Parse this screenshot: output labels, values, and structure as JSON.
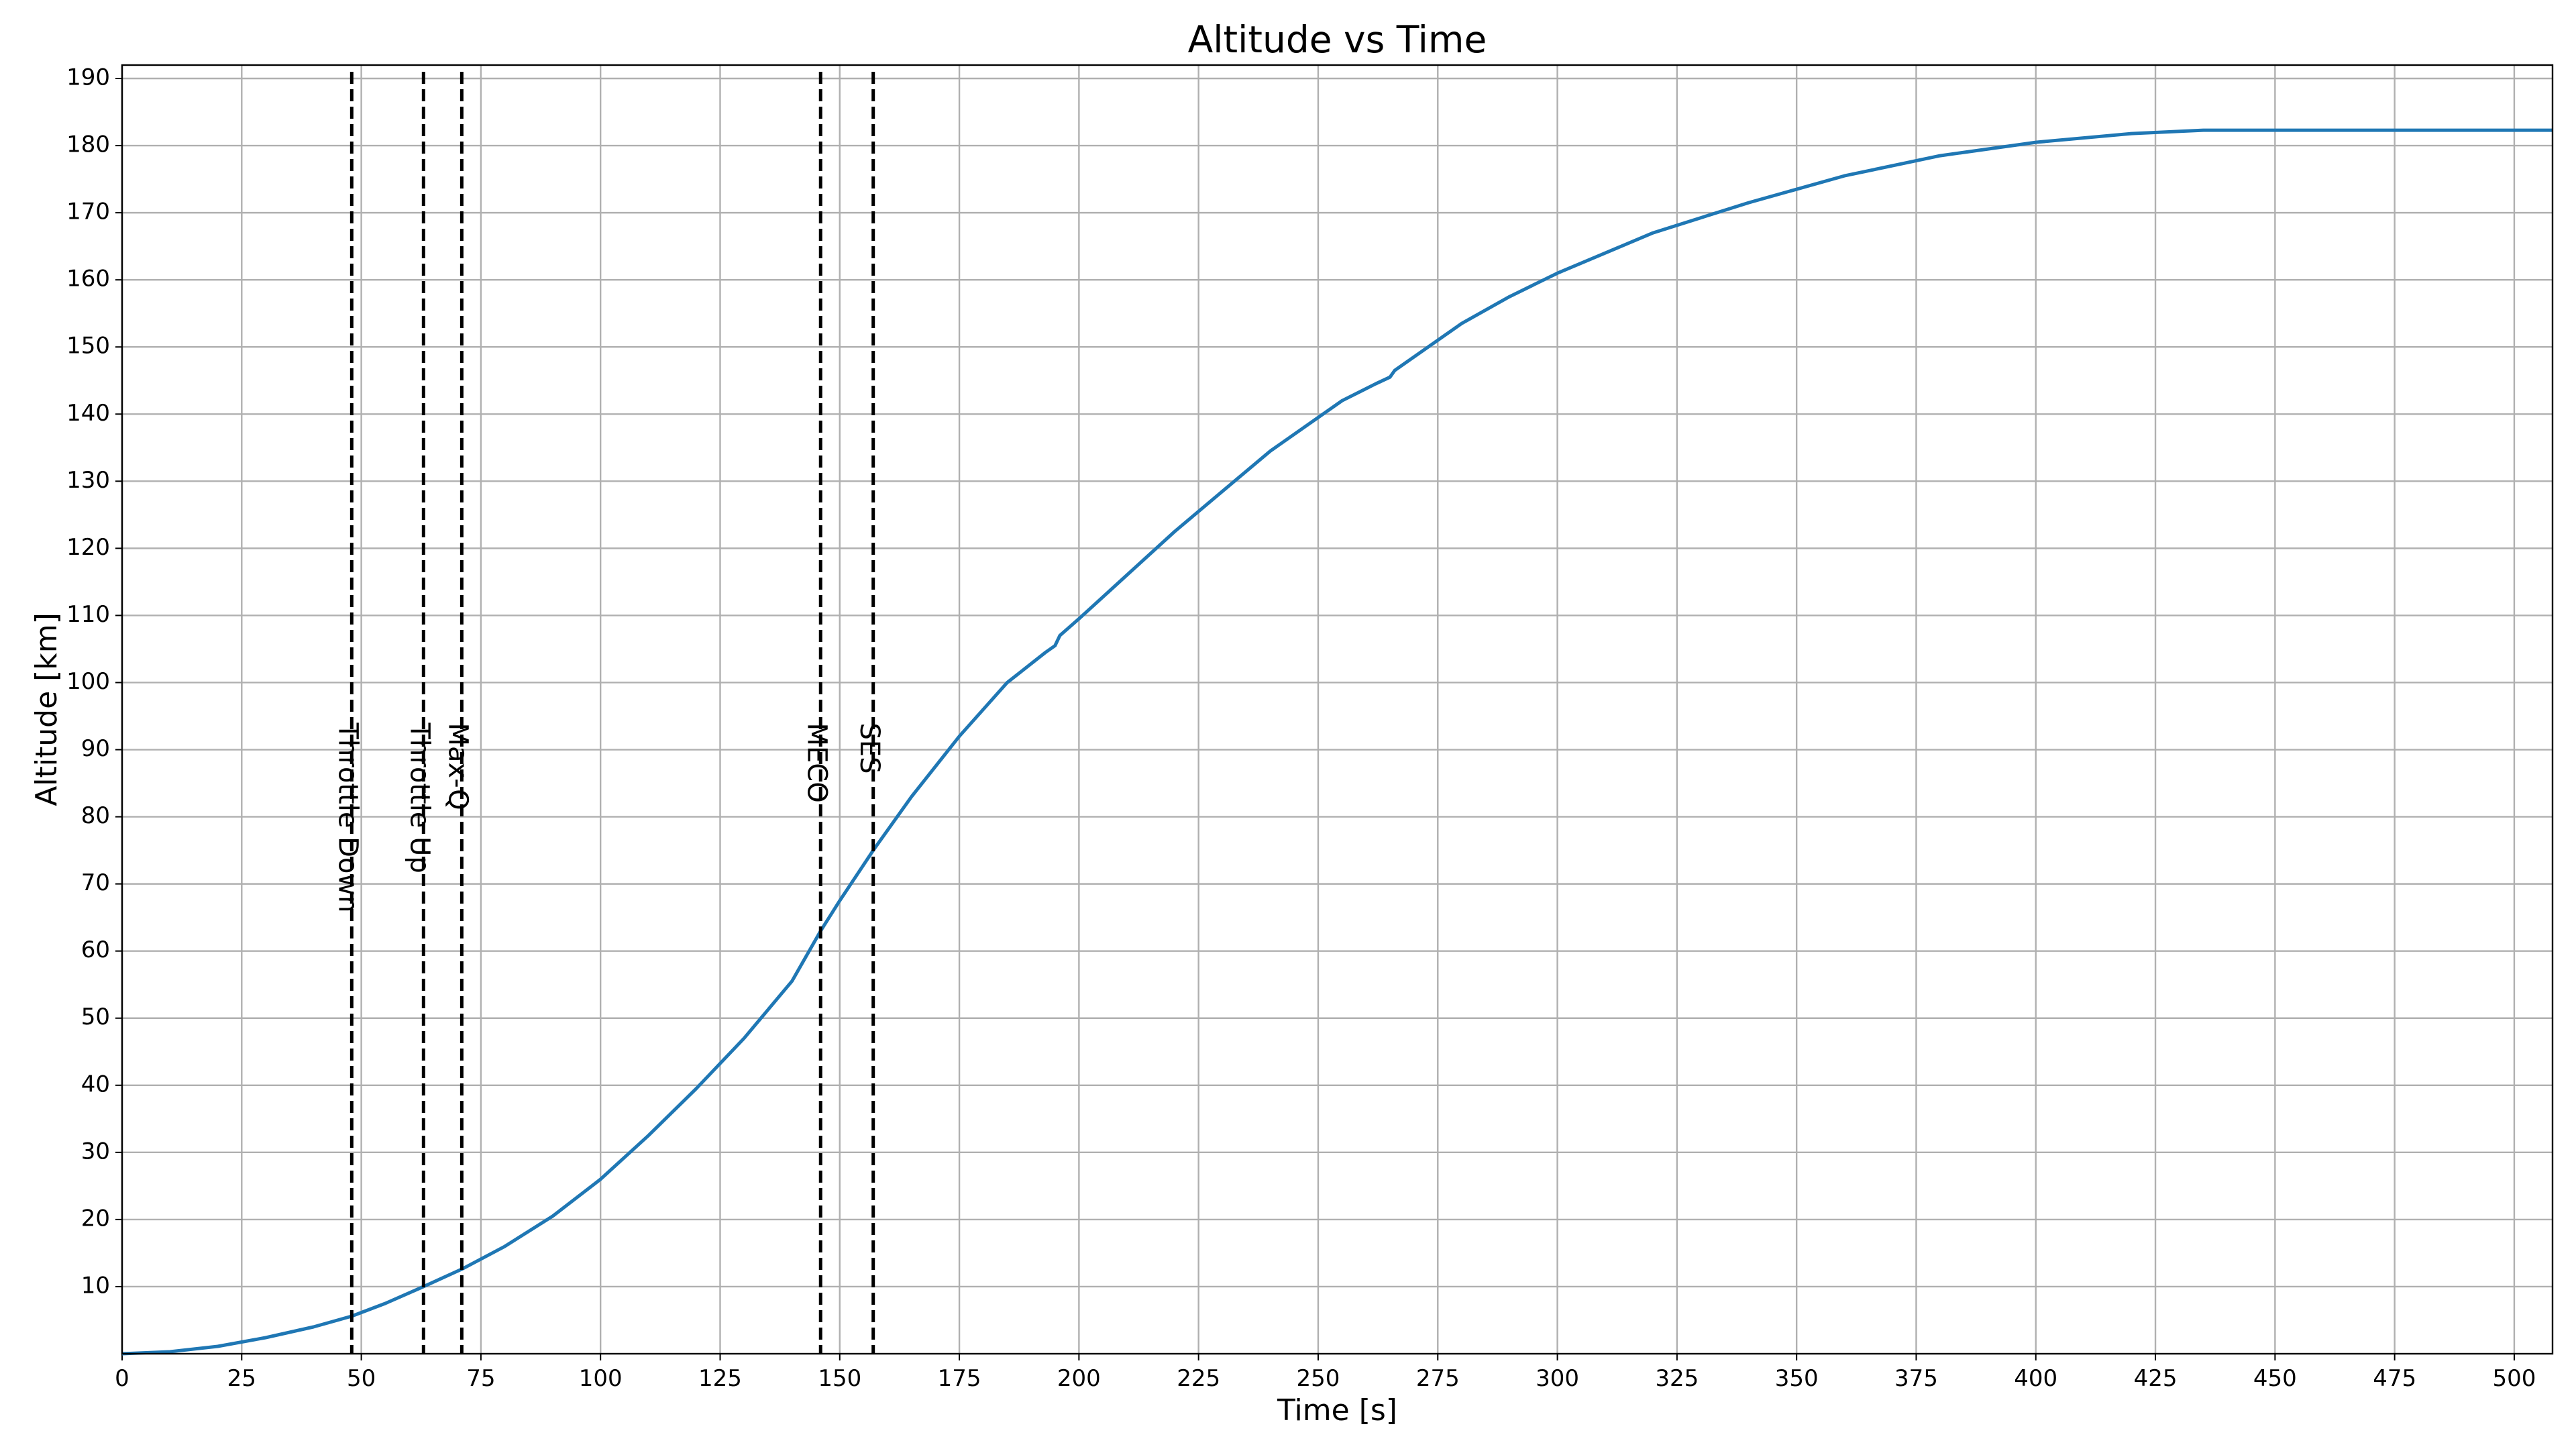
{
  "chart_data": {
    "type": "line",
    "title": "Altitude vs Time",
    "xlabel": "Time [s]",
    "ylabel": "Altitude [km]",
    "xlim": [
      0,
      508
    ],
    "ylim": [
      0,
      192
    ],
    "xticks": [
      0,
      25,
      50,
      75,
      100,
      125,
      150,
      175,
      200,
      225,
      250,
      275,
      300,
      325,
      350,
      375,
      400,
      425,
      450,
      475,
      500
    ],
    "yticks": [
      10,
      20,
      30,
      40,
      50,
      60,
      70,
      80,
      90,
      100,
      110,
      120,
      130,
      140,
      150,
      160,
      170,
      180,
      190
    ],
    "grid": true,
    "line_color": "#1f77b4",
    "series": [
      {
        "x": [
          0,
          10,
          20,
          30,
          40,
          48,
          55,
          63,
          71,
          80,
          90,
          100,
          110,
          120,
          130,
          140,
          146,
          150,
          157,
          165,
          175,
          185,
          193,
          195,
          196,
          200,
          210,
          220,
          230,
          240,
          250,
          253,
          255,
          262,
          265,
          266,
          268,
          270,
          280,
          290,
          300,
          320,
          340,
          360,
          380,
          400,
          420,
          435,
          450,
          475,
          508
        ],
        "y": [
          0,
          0.3,
          1.1,
          2.4,
          4.0,
          5.6,
          7.5,
          10.0,
          12.6,
          16.0,
          20.5,
          26.0,
          32.5,
          39.5,
          47.0,
          55.5,
          63.0,
          67.5,
          75.0,
          83.0,
          92.0,
          100.0,
          104.5,
          105.5,
          107.0,
          109.5,
          116.0,
          122.5,
          128.5,
          134.5,
          139.5,
          141.0,
          142.0,
          144.5,
          145.5,
          146.5,
          147.5,
          148.5,
          153.5,
          157.5,
          161.0,
          167.0,
          171.5,
          175.5,
          178.5,
          180.5,
          181.8,
          182.3,
          182.3,
          182.3,
          182.3
        ]
      }
    ],
    "events": [
      {
        "label": "Throttle Down",
        "x": 48
      },
      {
        "label": "Throttle Up",
        "x": 63
      },
      {
        "label": "Max-Q",
        "x": 71
      },
      {
        "label": "MECO",
        "x": 146
      },
      {
        "label": "SES",
        "x": 157
      }
    ],
    "event_label_y": 94
  }
}
